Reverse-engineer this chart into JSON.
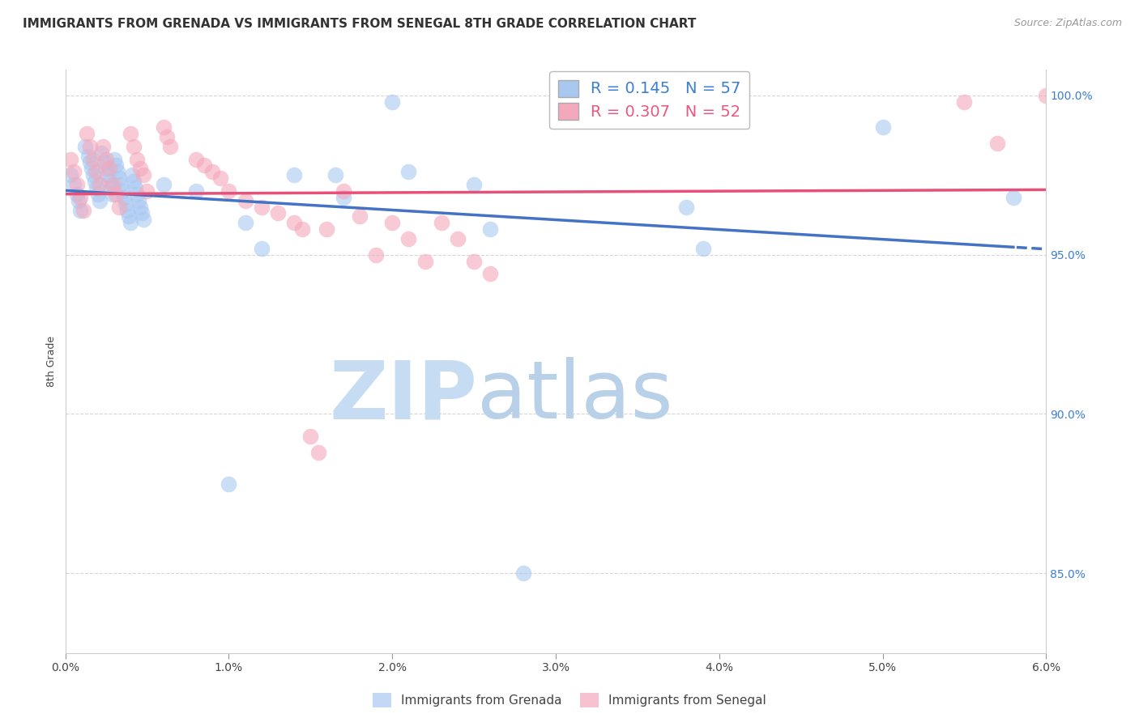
{
  "title": "IMMIGRANTS FROM GRENADA VS IMMIGRANTS FROM SENEGAL 8TH GRADE CORRELATION CHART",
  "source_text": "Source: ZipAtlas.com",
  "xlabel_label": "Immigrants from Grenada",
  "ylabel_label": "8th Grade",
  "x2label_label": "Immigrants from Senegal",
  "xlim": [
    0.0,
    0.06
  ],
  "ylim": [
    0.825,
    1.008
  ],
  "xtick_labels": [
    "0.0%",
    "1.0%",
    "2.0%",
    "3.0%",
    "4.0%",
    "5.0%",
    "6.0%"
  ],
  "xtick_values": [
    0.0,
    0.01,
    0.02,
    0.03,
    0.04,
    0.05,
    0.06
  ],
  "ytick_labels": [
    "85.0%",
    "90.0%",
    "95.0%",
    "100.0%"
  ],
  "ytick_values": [
    0.85,
    0.9,
    0.95,
    1.0
  ],
  "r_grenada": 0.145,
  "n_grenada": 57,
  "r_senegal": 0.307,
  "n_senegal": 52,
  "grenada_color": "#A8C8F0",
  "senegal_color": "#F4A8BC",
  "line_grenada_color": "#4472C4",
  "line_senegal_color": "#E8507A",
  "watermark_zip_color": "#C8DCF0",
  "watermark_atlas_color": "#B0CDE8",
  "background_color": "#ffffff",
  "grenada_x": [
    0.0003,
    0.0005,
    0.0007,
    0.0008,
    0.0009,
    0.0012,
    0.0014,
    0.0015,
    0.0016,
    0.0017,
    0.0018,
    0.0019,
    0.002,
    0.0021,
    0.0022,
    0.0024,
    0.0025,
    0.0026,
    0.0027,
    0.0028,
    0.0029,
    0.003,
    0.0031,
    0.0032,
    0.0033,
    0.0034,
    0.0035,
    0.0036,
    0.0037,
    0.0038,
    0.0039,
    0.004,
    0.0041,
    0.0042,
    0.0043,
    0.0044,
    0.0045,
    0.0046,
    0.0047,
    0.0048,
    0.006,
    0.008,
    0.01,
    0.011,
    0.012,
    0.014,
    0.0165,
    0.017,
    0.02,
    0.021,
    0.025,
    0.026,
    0.028,
    0.038,
    0.039,
    0.05,
    0.058
  ],
  "grenada_y": [
    0.975,
    0.972,
    0.969,
    0.967,
    0.964,
    0.984,
    0.981,
    0.979,
    0.977,
    0.975,
    0.973,
    0.971,
    0.969,
    0.967,
    0.982,
    0.979,
    0.977,
    0.975,
    0.973,
    0.971,
    0.969,
    0.98,
    0.978,
    0.976,
    0.974,
    0.972,
    0.97,
    0.968,
    0.966,
    0.964,
    0.962,
    0.96,
    0.975,
    0.973,
    0.971,
    0.969,
    0.967,
    0.965,
    0.963,
    0.961,
    0.972,
    0.97,
    0.878,
    0.96,
    0.952,
    0.975,
    0.975,
    0.968,
    0.998,
    0.976,
    0.972,
    0.958,
    0.85,
    0.965,
    0.952,
    0.99,
    0.968
  ],
  "senegal_x": [
    0.0003,
    0.0005,
    0.0007,
    0.0009,
    0.0011,
    0.0013,
    0.0015,
    0.0017,
    0.0019,
    0.0021,
    0.0023,
    0.0025,
    0.0027,
    0.0029,
    0.0031,
    0.0033,
    0.004,
    0.0042,
    0.0044,
    0.0046,
    0.0048,
    0.005,
    0.006,
    0.0062,
    0.0064,
    0.008,
    0.0085,
    0.009,
    0.0095,
    0.01,
    0.011,
    0.012,
    0.013,
    0.014,
    0.0145,
    0.015,
    0.0155,
    0.016,
    0.017,
    0.018,
    0.019,
    0.02,
    0.021,
    0.022,
    0.023,
    0.024,
    0.025,
    0.026,
    0.04,
    0.055,
    0.057,
    0.06
  ],
  "senegal_y": [
    0.98,
    0.976,
    0.972,
    0.968,
    0.964,
    0.988,
    0.984,
    0.98,
    0.976,
    0.972,
    0.984,
    0.98,
    0.977,
    0.972,
    0.969,
    0.965,
    0.988,
    0.984,
    0.98,
    0.977,
    0.975,
    0.97,
    0.99,
    0.987,
    0.984,
    0.98,
    0.978,
    0.976,
    0.974,
    0.97,
    0.967,
    0.965,
    0.963,
    0.96,
    0.958,
    0.893,
    0.888,
    0.958,
    0.97,
    0.962,
    0.95,
    0.96,
    0.955,
    0.948,
    0.96,
    0.955,
    0.948,
    0.944,
    0.998,
    0.998,
    0.985,
    1.0
  ],
  "title_fontsize": 11,
  "axis_label_fontsize": 9,
  "tick_fontsize": 10,
  "legend_fontsize": 13
}
